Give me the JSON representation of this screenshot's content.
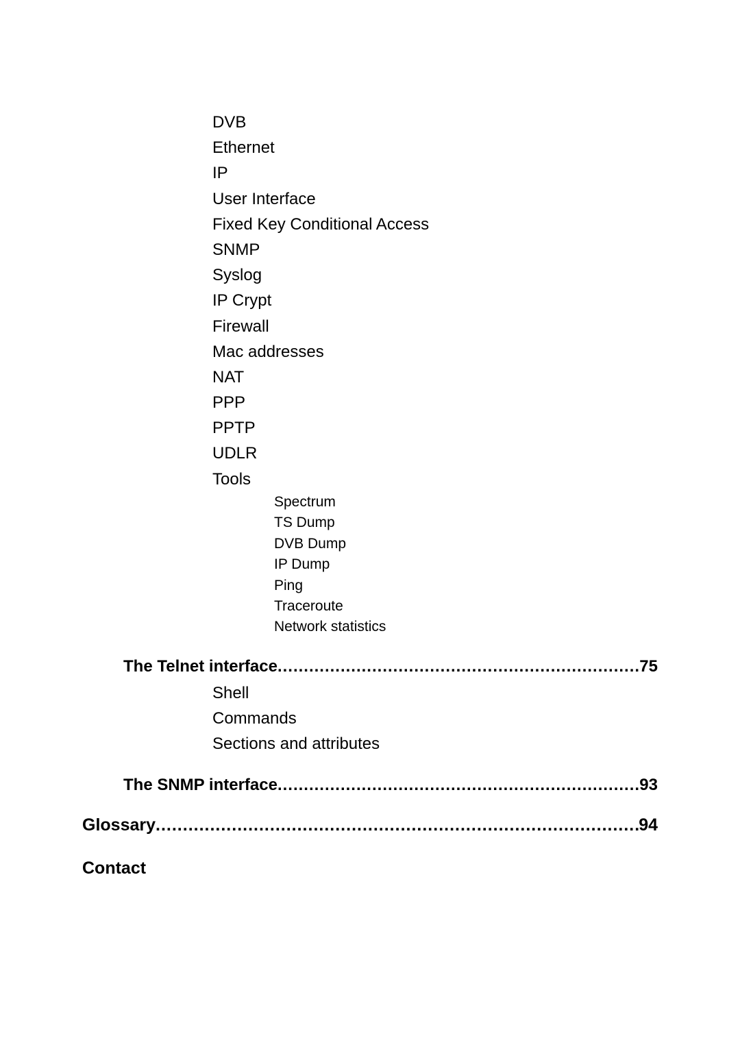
{
  "list1": {
    "items": [
      "DVB",
      "Ethernet",
      "IP",
      "User Interface",
      "Fixed Key Conditional Access",
      "SNMP",
      "Syslog",
      "IP Crypt",
      "Firewall",
      "Mac addresses",
      "NAT",
      "PPP",
      "PPTP",
      "UDLR",
      "Tools"
    ]
  },
  "tools_sub": {
    "items": [
      "Spectrum",
      "TS Dump",
      "DVB Dump",
      "IP Dump",
      "Ping",
      "Traceroute",
      "Network statistics"
    ]
  },
  "telnet": {
    "title": "The Telnet interface",
    "page": "75",
    "items": [
      "Shell",
      "Commands",
      "Sections and attributes"
    ]
  },
  "snmp": {
    "title": "The SNMP interface",
    "page": "93"
  },
  "glossary": {
    "title": "Glossary",
    "page": "94"
  },
  "contact": {
    "title": "Contact"
  },
  "dots": "..................................................................................................................."
}
